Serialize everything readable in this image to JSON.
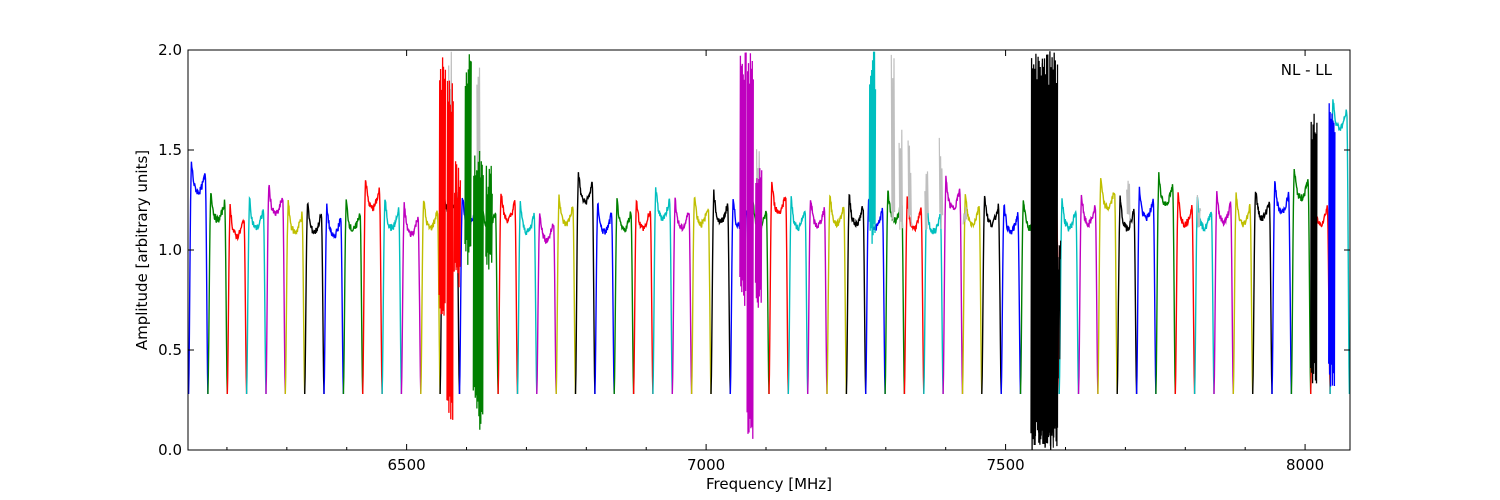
{
  "chart_data": {
    "type": "line",
    "xlabel": "Frequency [MHz]",
    "ylabel": "Amplitude [arbitrary units]",
    "annotation": "NL - LL",
    "xlim": [
      6135,
      8075
    ],
    "ylim": [
      0.0,
      2.0
    ],
    "xticks": [
      {
        "value": 6500,
        "label": "6500"
      },
      {
        "value": 7000,
        "label": "7000"
      },
      {
        "value": 7500,
        "label": "7500"
      },
      {
        "value": 8000,
        "label": "8000"
      }
    ],
    "yticks": [
      {
        "value": 0.0,
        "label": "0.0"
      },
      {
        "value": 0.5,
        "label": "0.5"
      },
      {
        "value": 1.0,
        "label": "1.0"
      },
      {
        "value": 1.5,
        "label": "1.5"
      },
      {
        "value": 2.0,
        "label": "2.0"
      }
    ],
    "grid": false,
    "background_series_color": "#bfbfbf",
    "color_cycle": [
      "#0000ff",
      "#008000",
      "#ff0000",
      "#00bfbf",
      "#bf00bf",
      "#bfbf00",
      "#000000"
    ],
    "channel": {
      "start_freq": 6136,
      "width_mhz": 32.3,
      "count": 60,
      "base_level": 1.18,
      "edge_level": 0.28
    },
    "channel_levels": [
      1.38,
      1.24,
      1.16,
      1.2,
      1.27,
      1.18,
      1.18,
      1.16,
      1.19,
      1.3,
      1.2,
      1.17,
      1.2,
      1.28,
      1.22,
      1.2,
      1.24,
      1.18,
      1.14,
      1.22,
      1.33,
      1.18,
      1.19,
      1.2,
      1.25,
      1.2,
      1.22,
      1.23,
      1.2,
      1.2,
      1.28,
      1.2,
      1.21,
      1.22,
      1.22,
      1.2,
      1.24,
      1.2,
      1.18,
      1.3,
      1.22,
      1.22,
      1.18,
      1.2,
      1.22,
      1.2,
      1.22,
      1.3,
      1.2,
      1.25,
      1.32,
      1.22,
      1.2,
      1.23,
      1.22,
      1.25,
      1.28,
      1.35,
      1.22,
      1.7
    ],
    "spikes": [
      {
        "x": 6560,
        "y_low": 0.65,
        "y_high": 2.0,
        "color": "#ff0000"
      },
      {
        "x": 6573,
        "y_low": 0.15,
        "y_high": 1.85,
        "color": "#ff0000"
      },
      {
        "x": 6585,
        "y_low": 0.8,
        "y_high": 1.45,
        "color": "#ff0000"
      },
      {
        "x": 6603,
        "y_low": 0.9,
        "y_high": 2.0,
        "color": "#008000"
      },
      {
        "x": 6617,
        "y_low": 0.25,
        "y_high": 1.5,
        "color": "#008000"
      },
      {
        "x": 6623,
        "y_low": 0.1,
        "y_high": 1.5,
        "color": "#008000"
      },
      {
        "x": 6638,
        "y_low": 0.9,
        "y_high": 1.45,
        "color": "#008000"
      },
      {
        "x": 7062,
        "y_low": 0.72,
        "y_high": 2.0,
        "color": "#bf00bf"
      },
      {
        "x": 7074,
        "y_low": 0.05,
        "y_high": 2.0,
        "color": "#bf00bf"
      },
      {
        "x": 7088,
        "y_low": 0.7,
        "y_high": 1.5,
        "color": "#bf00bf"
      },
      {
        "x": 7278,
        "y_low": 1.0,
        "y_high": 2.0,
        "color": "#00bfbf"
      },
      {
        "x": 7556,
        "y_low": 0.0,
        "y_high": 2.0,
        "color": "#000000"
      },
      {
        "x": 7574,
        "y_low": 0.0,
        "y_high": 2.0,
        "color": "#000000"
      },
      {
        "x": 7569,
        "y_low": 0.0,
        "y_high": 1.1,
        "color": "#000000"
      },
      {
        "x": 8015,
        "y_low": 0.3,
        "y_high": 1.75,
        "color": "#000000"
      },
      {
        "x": 8045,
        "y_low": 0.3,
        "y_high": 1.77,
        "color": "#0000ff"
      }
    ],
    "grey_spikes": [
      {
        "x": 6573,
        "y_high": 2.0
      },
      {
        "x": 6620,
        "y_high": 2.0
      },
      {
        "x": 7087,
        "y_high": 1.57
      },
      {
        "x": 7312,
        "y_high": 2.0
      },
      {
        "x": 7325,
        "y_high": 1.65
      },
      {
        "x": 7340,
        "y_high": 1.55
      },
      {
        "x": 7368,
        "y_high": 1.45
      },
      {
        "x": 7392,
        "y_high": 1.6
      },
      {
        "x": 7432,
        "y_high": 1.25
      },
      {
        "x": 7548,
        "y_high": 1.33
      },
      {
        "x": 7705,
        "y_high": 1.45
      },
      {
        "x": 7823,
        "y_high": 1.3
      }
    ]
  }
}
